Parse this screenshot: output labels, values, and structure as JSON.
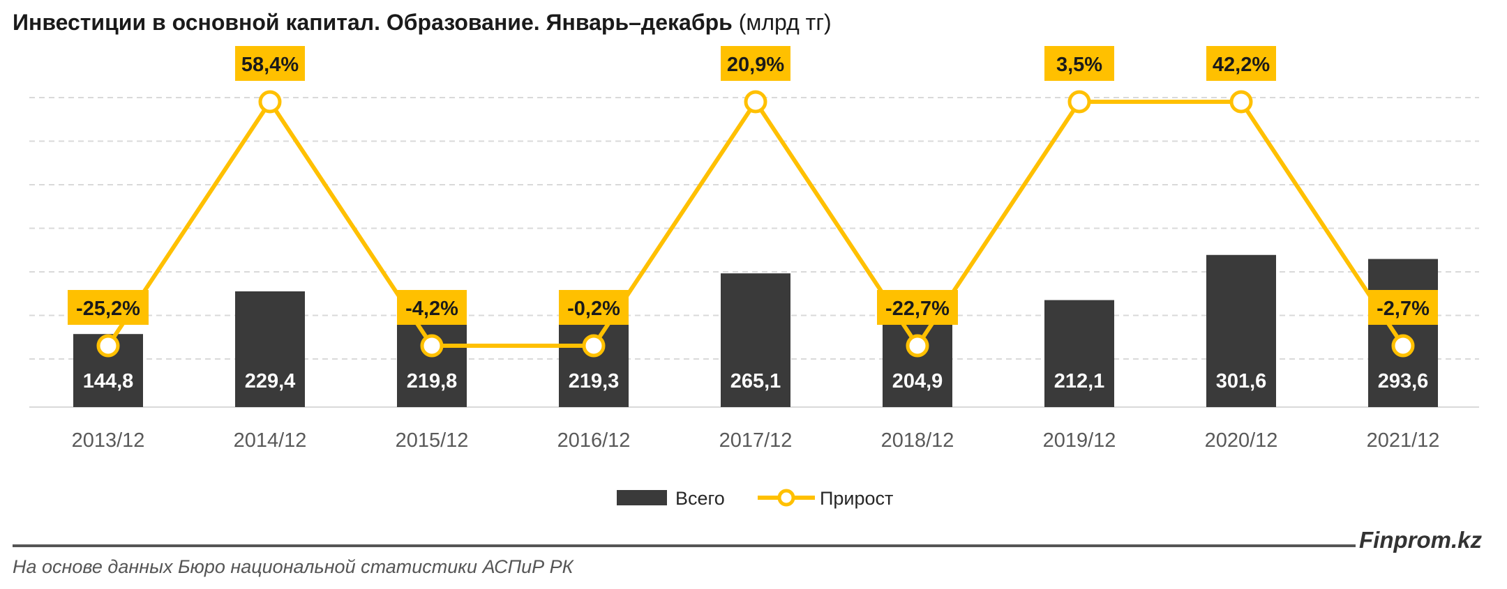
{
  "title": "Инвестиции в основной капитал. Образование. Январь–декабрь",
  "title_unit": "(млрд тг)",
  "brand": "Finprom.kz",
  "source": "На основе данных Бюро национальной статистики АСПиР РК",
  "colors": {
    "bar": "#3a3a3a",
    "line": "#FFC000",
    "grid": "#d9d9d9",
    "axis_text": "#595959"
  },
  "chart_data": {
    "type": "bar",
    "categories": [
      "2013/12",
      "2014/12",
      "2015/12",
      "2016/12",
      "2017/12",
      "2018/12",
      "2019/12",
      "2020/12",
      "2021/12"
    ],
    "series": [
      {
        "name": "Всего",
        "type": "bar",
        "values": [
          144.8,
          229.4,
          219.8,
          219.3,
          265.1,
          204.9,
          212.1,
          301.6,
          293.6
        ],
        "labels": [
          "144,8",
          "229,4",
          "219,8",
          "219,3",
          "265,1",
          "204,9",
          "212,1",
          "301,6",
          "293,6"
        ]
      },
      {
        "name": "Прирост",
        "type": "line",
        "values": [
          -25.2,
          58.4,
          -4.2,
          -0.2,
          20.9,
          -22.7,
          3.5,
          42.2,
          -2.7
        ],
        "labels": [
          "-25,2%",
          "58,4%",
          "-4,2%",
          "-0,2%",
          "20,9%",
          "-22,7%",
          "3,5%",
          "42,2%",
          "-2,7%"
        ]
      }
    ],
    "ylim": [
      0,
      350
    ],
    "grid": true,
    "legend": "bottom-center"
  }
}
